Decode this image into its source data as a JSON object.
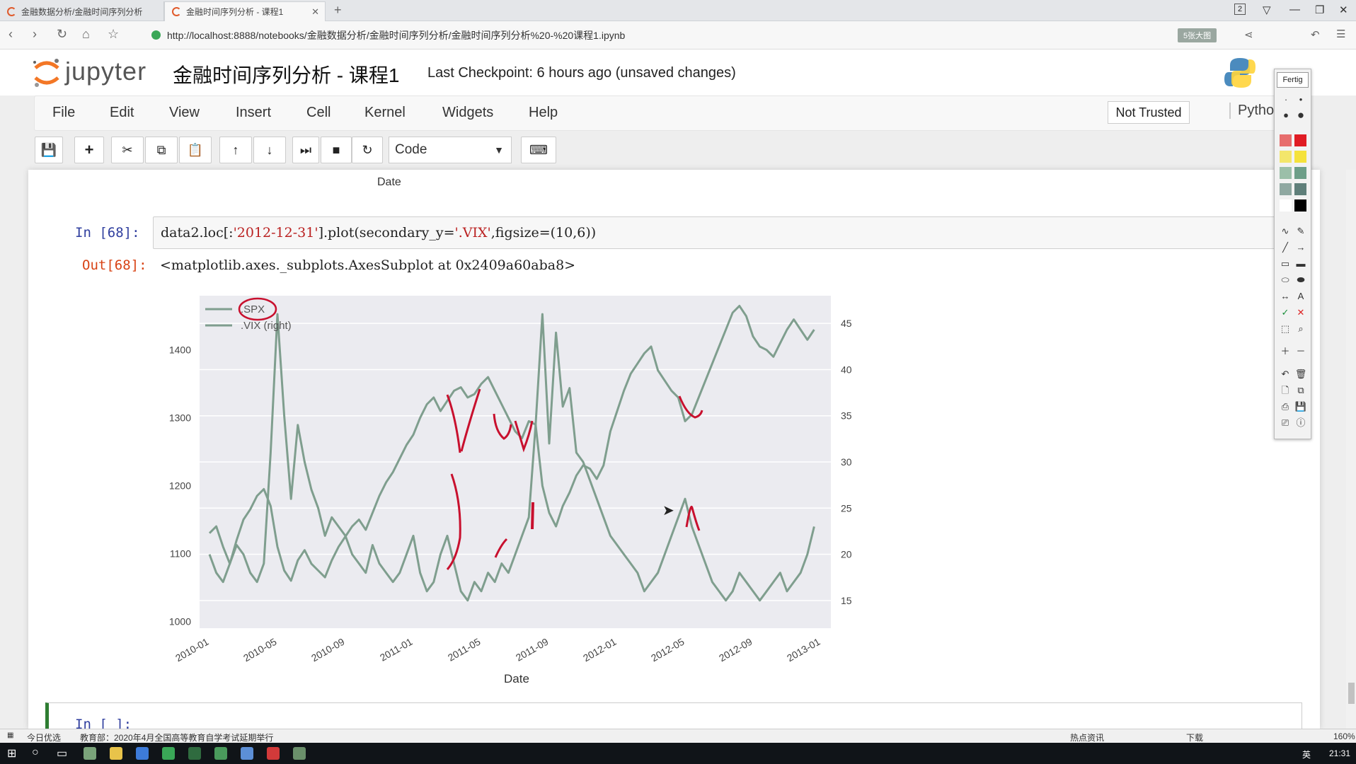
{
  "browser": {
    "tabs": [
      {
        "label": "金融数据分析/金融时间序列分析",
        "active": false
      },
      {
        "label": "金融时间序列分析 - 课程1",
        "active": true
      }
    ],
    "tab_badge": "2",
    "url": "http://localhost:8888/notebooks/金融数据分析/金融时间序列分析/金融时间序列分析%20-%20课程1.ipynb",
    "addr_right_label": "5张大图"
  },
  "jupyter": {
    "logo_text": "jupyter",
    "title": "金融时间序列分析 - 课程1",
    "checkpoint": "Last Checkpoint: 6 hours ago (unsaved changes)",
    "menu": [
      "File",
      "Edit",
      "View",
      "Insert",
      "Cell",
      "Kernel",
      "Widgets",
      "Help"
    ],
    "trust": "Not Trusted",
    "kernel": "Pytho",
    "cell_type": "Code"
  },
  "cells": {
    "prev_xlabel": "Date",
    "in_prompt": "In  [68]:",
    "code_pre": "data2.loc[:",
    "code_str1": "'2012-12-31'",
    "code_mid": "].plot(secondary_y=",
    "code_str2": "'.VIX'",
    "code_post": ",figsize=(10,6))",
    "out_prompt": "Out[68]:",
    "out_text": "<matplotlib.axes._subplots.AxesSubplot at 0x2409a60aba8>",
    "next_prompt": "In  [ ]:"
  },
  "palette": {
    "done_label": "Fertig"
  },
  "status": {
    "left1": "今日优选",
    "news": "教育部：2020年4月全国高等教育自学考试延期举行",
    "right1": "热点资讯",
    "download": "下载",
    "zoom": "160%"
  },
  "taskbar": {
    "lang": "英",
    "time": "21:31"
  },
  "chart_data": {
    "type": "line",
    "xlabel": "Date",
    "x_ticks": [
      "2010-01",
      "2010-05",
      "2010-09",
      "2011-01",
      "2011-05",
      "2011-09",
      "2012-01",
      "2012-05",
      "2012-09",
      "2013-01"
    ],
    "y_left_ticks": [
      1000,
      1100,
      1200,
      1300,
      1400
    ],
    "y_left_range": [
      990,
      1480
    ],
    "y_right_ticks": [
      15,
      20,
      25,
      30,
      35,
      40,
      45
    ],
    "y_right_range": [
      12,
      48
    ],
    "x_range": [
      0,
      36
    ],
    "legend_position": "top-left",
    "series": [
      {
        "name": ".SPX",
        "axis": "left",
        "x": [
          0.0,
          0.4,
          0.8,
          1.2,
          1.6,
          2.0,
          2.4,
          2.8,
          3.2,
          3.6,
          4.0,
          4.4,
          4.8,
          5.2,
          5.6,
          6.0,
          6.4,
          6.8,
          7.2,
          7.6,
          8.0,
          8.4,
          8.8,
          9.2,
          9.6,
          10.0,
          10.4,
          10.8,
          11.2,
          11.6,
          12.0,
          12.4,
          12.8,
          13.2,
          13.6,
          14.0,
          14.4,
          14.8,
          15.2,
          15.6,
          16.0,
          16.4,
          16.8,
          17.2,
          17.6,
          18.0,
          18.4,
          18.8,
          19.2,
          19.6,
          20.0,
          20.4,
          20.8,
          21.2,
          21.6,
          22.0,
          22.4,
          22.8,
          23.2,
          23.6,
          24.0,
          24.4,
          24.8,
          25.2,
          25.6,
          26.0,
          26.4,
          26.8,
          27.2,
          27.6,
          28.0,
          28.4,
          28.8,
          29.2,
          29.6,
          30.0,
          30.4,
          30.8,
          31.2,
          31.6,
          32.0,
          32.4,
          32.8,
          33.2,
          33.6,
          34.0,
          34.4,
          34.8,
          35.2,
          35.6
        ],
        "values": [
          1130,
          1140,
          1110,
          1085,
          1120,
          1150,
          1165,
          1185,
          1195,
          1170,
          1110,
          1075,
          1060,
          1090,
          1105,
          1085,
          1075,
          1065,
          1090,
          1110,
          1125,
          1140,
          1150,
          1135,
          1160,
          1185,
          1205,
          1220,
          1240,
          1260,
          1275,
          1300,
          1320,
          1330,
          1310,
          1325,
          1340,
          1345,
          1330,
          1335,
          1350,
          1360,
          1340,
          1320,
          1300,
          1280,
          1270,
          1295,
          1290,
          1200,
          1160,
          1140,
          1170,
          1190,
          1215,
          1230,
          1225,
          1210,
          1230,
          1280,
          1310,
          1340,
          1365,
          1380,
          1395,
          1405,
          1370,
          1355,
          1340,
          1330,
          1295,
          1305,
          1330,
          1355,
          1380,
          1405,
          1430,
          1455,
          1465,
          1450,
          1420,
          1405,
          1400,
          1390,
          1410,
          1430,
          1445,
          1430,
          1415,
          1430
        ]
      },
      {
        "name": ".VIX (right)",
        "axis": "right",
        "x": [
          0.0,
          0.4,
          0.8,
          1.2,
          1.6,
          2.0,
          2.4,
          2.8,
          3.2,
          3.6,
          4.0,
          4.4,
          4.8,
          5.2,
          5.6,
          6.0,
          6.4,
          6.8,
          7.2,
          7.6,
          8.0,
          8.4,
          8.8,
          9.2,
          9.6,
          10.0,
          10.4,
          10.8,
          11.2,
          11.6,
          12.0,
          12.4,
          12.8,
          13.2,
          13.6,
          14.0,
          14.4,
          14.8,
          15.2,
          15.6,
          16.0,
          16.4,
          16.8,
          17.2,
          17.6,
          18.0,
          18.4,
          18.8,
          19.2,
          19.6,
          20.0,
          20.4,
          20.8,
          21.2,
          21.6,
          22.0,
          22.4,
          22.8,
          23.2,
          23.6,
          24.0,
          24.4,
          24.8,
          25.2,
          25.6,
          26.0,
          26.4,
          26.8,
          27.2,
          27.6,
          28.0,
          28.4,
          28.8,
          29.2,
          29.6,
          30.0,
          30.4,
          30.8,
          31.2,
          31.6,
          32.0,
          32.4,
          32.8,
          33.2,
          33.6,
          34.0,
          34.4,
          34.8,
          35.2,
          35.6
        ],
        "values": [
          20,
          18,
          17,
          19,
          21,
          20,
          18,
          17,
          19,
          31,
          46,
          35,
          26,
          34,
          30,
          27,
          25,
          22,
          24,
          23,
          22,
          20,
          19,
          18,
          21,
          19,
          18,
          17,
          18,
          20,
          22,
          18,
          16,
          17,
          20,
          22,
          19,
          16,
          15,
          17,
          16,
          18,
          17,
          19,
          18,
          20,
          22,
          24,
          34,
          46,
          32,
          44,
          36,
          38,
          31,
          30,
          28,
          26,
          24,
          22,
          21,
          20,
          19,
          18,
          16,
          17,
          18,
          20,
          22,
          24,
          26,
          23,
          21,
          19,
          17,
          16,
          15,
          16,
          18,
          17,
          16,
          15,
          16,
          17,
          18,
          16,
          17,
          18,
          20,
          23
        ]
      }
    ]
  }
}
